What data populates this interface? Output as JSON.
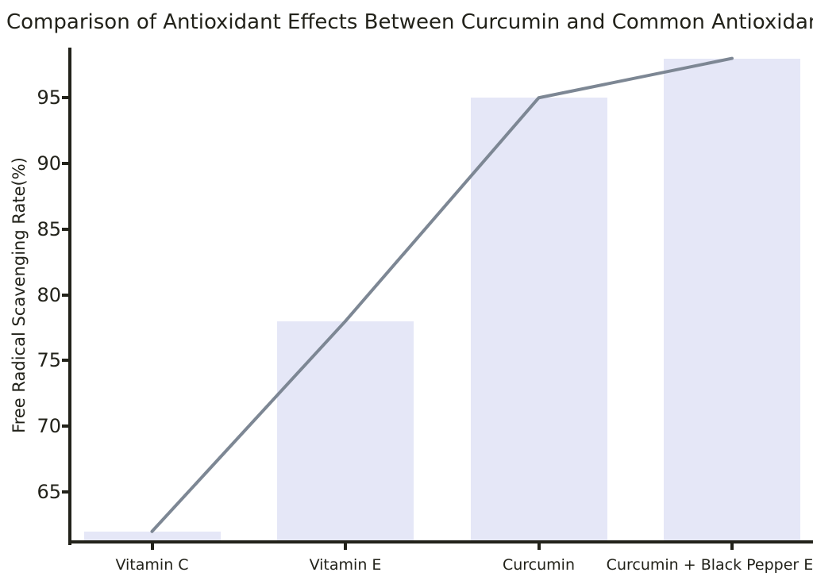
{
  "chart_data": {
    "type": "bar",
    "categories": [
      "Vitamin C",
      "Vitamin E",
      "Curcumin",
      "Curcumin + Black Pepper Extract"
    ],
    "values": [
      62,
      78,
      95,
      98
    ],
    "line_overlay": {
      "type": "line",
      "values": [
        62,
        78,
        95,
        98
      ]
    },
    "title": "Comparison of Antioxidant Effects Between Curcumin and Common Antioxidants",
    "xlabel": "",
    "ylabel": "Free Radical Scavenging Rate(%)",
    "yticks": [
      65,
      70,
      75,
      80,
      85,
      90,
      95
    ],
    "ylim": [
      61.2,
      98.7
    ],
    "grid": false,
    "legend": false,
    "colors": {
      "bar_fill": "#e5e7f7",
      "line": "#7d8794",
      "axis": "#22221a",
      "text": "#22221a",
      "background": "#ffffff"
    }
  }
}
